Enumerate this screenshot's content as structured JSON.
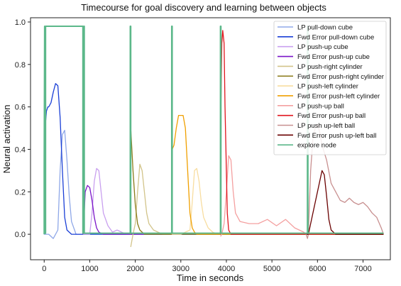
{
  "chart_data": {
    "type": "line",
    "title": "Timecourse for goal discovery and learning between objects",
    "xlabel": "Time in seconds",
    "ylabel": "Neural activation",
    "xlim": [
      -300,
      7600
    ],
    "ylim": [
      -0.12,
      1.02
    ],
    "xticks": [
      0,
      1000,
      2000,
      3000,
      4000,
      5000,
      6000,
      7000
    ],
    "yticks": [
      0.0,
      0.2,
      0.4,
      0.6,
      0.8,
      1.0
    ],
    "legend_position": "top-right",
    "grid": false,
    "series": [
      {
        "name": "LP pull-down cube",
        "color": "#8fa8e8",
        "x": [
          0,
          100,
          200,
          300,
          350,
          400,
          450,
          500,
          550,
          600,
          700,
          800,
          900
        ],
        "y": [
          0.0,
          0.0,
          -0.02,
          0.02,
          0.3,
          0.47,
          0.49,
          0.35,
          0.18,
          0.06,
          0.0,
          0.0,
          0.0
        ]
      },
      {
        "name": "Fwd Error pull-down cube",
        "color": "#1a3fd6",
        "x": [
          0,
          20,
          50,
          80,
          100,
          150,
          200,
          250,
          300,
          350,
          400,
          450,
          500,
          550,
          600,
          700,
          1000,
          7450
        ],
        "y": [
          0.0,
          0.5,
          0.58,
          0.6,
          0.6,
          0.62,
          0.67,
          0.71,
          0.7,
          0.55,
          0.3,
          0.08,
          0.02,
          0.01,
          0.0,
          0.0,
          0.0,
          0.0
        ]
      },
      {
        "name": "LP push-up cube",
        "color": "#c9a0ef",
        "x": [
          850,
          900,
          1000,
          1050,
          1100,
          1150,
          1200,
          1250,
          1300,
          1400,
          1500,
          1600,
          1700,
          1800,
          2000,
          2200
        ],
        "y": [
          0.0,
          0.0,
          0.0,
          0.1,
          0.25,
          0.31,
          0.3,
          0.2,
          0.1,
          0.04,
          0.01,
          0.02,
          0.01,
          0.0,
          0.0,
          0.0
        ]
      },
      {
        "name": "Fwd Error push-up cube",
        "color": "#7a14c8",
        "x": [
          850,
          880,
          900,
          950,
          1000,
          1050,
          1100,
          1150,
          1200,
          1300,
          1500,
          7450
        ],
        "y": [
          0.0,
          0.1,
          0.2,
          0.23,
          0.22,
          0.16,
          0.08,
          0.03,
          0.01,
          0.0,
          0.0,
          0.0
        ]
      },
      {
        "name": "LP push-right cylinder",
        "color": "#d2c48a",
        "x": [
          1900,
          1950,
          2000,
          2050,
          2100,
          2150,
          2200,
          2250,
          2300,
          2400,
          2500,
          2600,
          2800
        ],
        "y": [
          -0.06,
          0.0,
          0.05,
          0.2,
          0.33,
          0.3,
          0.2,
          0.1,
          0.05,
          0.02,
          0.01,
          0.0,
          0.0
        ]
      },
      {
        "name": "Fwd Error push-right cylinder",
        "color": "#8a7a18",
        "x": [
          1890,
          1900,
          1950,
          2000,
          2050,
          2100,
          2150,
          2200,
          2300,
          7450
        ],
        "y": [
          0.0,
          0.5,
          0.3,
          0.14,
          0.05,
          0.02,
          0.01,
          0.0,
          0.0,
          0.0
        ]
      },
      {
        "name": "LP push-left cylinder",
        "color": "#f8dda0",
        "x": [
          2800,
          3000,
          3200,
          3250,
          3300,
          3350,
          3400,
          3450,
          3500,
          3600,
          3700,
          3800
        ],
        "y": [
          0.0,
          0.0,
          0.02,
          0.15,
          0.3,
          0.31,
          0.25,
          0.15,
          0.08,
          0.03,
          0.01,
          0.0
        ]
      },
      {
        "name": "Fwd Error push-left cylinder",
        "color": "#f0a000",
        "x": [
          2800,
          2810,
          2850,
          2900,
          2950,
          3000,
          3050,
          3100,
          3150,
          3200,
          3250,
          3300,
          3350,
          3400,
          3500,
          7450
        ],
        "y": [
          0.0,
          0.4,
          0.42,
          0.5,
          0.56,
          0.56,
          0.56,
          0.5,
          0.3,
          0.1,
          0.03,
          0.01,
          0.0,
          0.0,
          0.0,
          0.0
        ]
      },
      {
        "name": "LP push-up ball",
        "color": "#f4a0a0",
        "x": [
          3870,
          3900,
          3950,
          4000,
          4050,
          4100,
          4150,
          4200,
          4300,
          4500,
          4700,
          4900,
          5100,
          5300,
          5500,
          5600,
          5700,
          5750
        ],
        "y": [
          -0.01,
          0.0,
          0.05,
          0.2,
          0.37,
          0.35,
          0.2,
          0.1,
          0.06,
          0.05,
          0.05,
          0.07,
          0.04,
          0.07,
          0.03,
          0.02,
          0.01,
          0.0
        ]
      },
      {
        "name": "Fwd Error push-up ball",
        "color": "#e0141c",
        "x": [
          3870,
          3880,
          3900,
          3920,
          3950,
          3970,
          4000,
          4020,
          4050,
          4100,
          4200,
          7450
        ],
        "y": [
          0.0,
          0.6,
          0.9,
          0.96,
          0.9,
          0.6,
          0.3,
          0.1,
          0.02,
          0.0,
          0.0,
          0.0
        ]
      },
      {
        "name": "LP push up-left ball",
        "color": "#c89090",
        "x": [
          5750,
          5780,
          5800,
          5850,
          5900,
          5950,
          6000,
          6050,
          6100,
          6200,
          6300,
          6400,
          6500,
          6600,
          6700,
          6800,
          6900,
          7000,
          7100,
          7200,
          7300,
          7400,
          7450
        ],
        "y": [
          0.0,
          -0.02,
          0.0,
          0.3,
          0.45,
          0.5,
          0.52,
          0.48,
          0.42,
          0.35,
          0.24,
          0.2,
          0.16,
          0.15,
          0.17,
          0.15,
          0.14,
          0.15,
          0.13,
          0.1,
          0.08,
          0.03,
          0.0
        ]
      },
      {
        "name": "Fwd Error push up-left ball",
        "color": "#6a0000",
        "x": [
          5760,
          5800,
          6000,
          6100,
          6150,
          6200,
          6250,
          6300,
          6400,
          7450
        ],
        "y": [
          0.0,
          0.0,
          0.2,
          0.3,
          0.28,
          0.18,
          0.07,
          0.02,
          0.0,
          0.0
        ]
      },
      {
        "name": "explore node",
        "color": "#5cb88a",
        "x": [
          0,
          0,
          10,
          10,
          0,
          0,
          30,
          30,
          850,
          850,
          870,
          870,
          880,
          880,
          1890,
          1890,
          1900,
          1900,
          2800,
          2800,
          2810,
          2810,
          3870,
          3870,
          3880,
          3880,
          5780,
          5780,
          5790,
          5790,
          7450
        ],
        "y": [
          0.0,
          0.3,
          0.98,
          0.005,
          0.005,
          0.005,
          0.005,
          0.98,
          0.98,
          0.005,
          0.005,
          0.98,
          0.98,
          0.005,
          0.005,
          0.98,
          0.98,
          0.005,
          0.005,
          0.98,
          0.98,
          0.005,
          0.005,
          0.98,
          0.98,
          0.005,
          0.005,
          0.98,
          0.98,
          0.005,
          0.005
        ]
      }
    ]
  }
}
